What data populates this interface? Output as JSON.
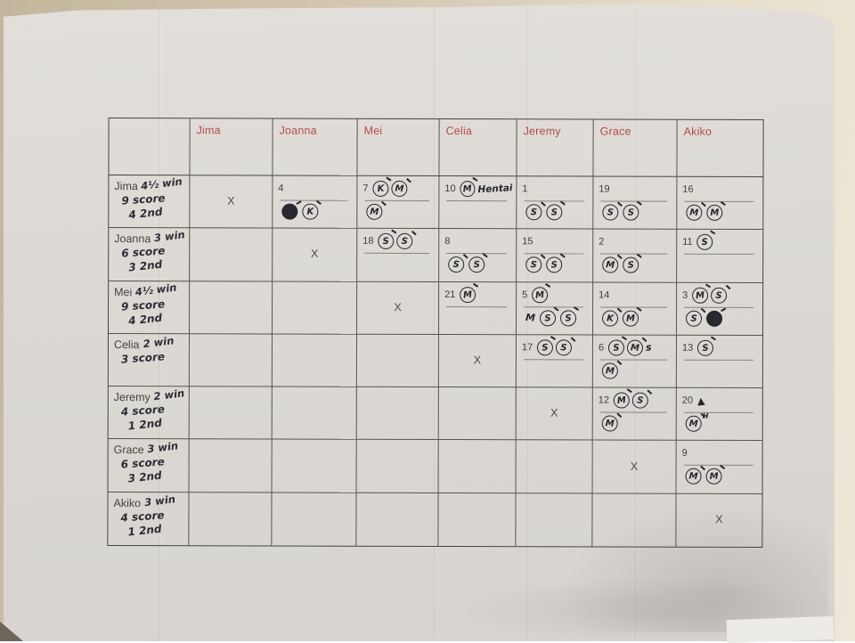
{
  "photo": {
    "background_color": "#d2c6ae",
    "paper_color": "#dcd9d4",
    "ink_color": "#2d2c33",
    "header_color": "#b5494a",
    "grid_color": "#57544c"
  },
  "table": {
    "x_mark": "X",
    "headers": [
      "",
      "Jima",
      "Joanna",
      "Mei",
      "Celia",
      "Jeremy",
      "Grace",
      "Akiko"
    ],
    "rows": [
      {
        "name": "Jima",
        "stats": [
          "4½ win",
          "9 score",
          "4 2nd"
        ],
        "cells": [
          {
            "x": true
          },
          {
            "num": "4",
            "below": [
              "#",
              "K"
            ]
          },
          {
            "num": "7",
            "on": [
              "K",
              "M"
            ],
            "below": [
              "M"
            ]
          },
          {
            "num": "10",
            "on": [
              "M"
            ],
            "note": "Hentai"
          },
          {
            "num": "1",
            "below": [
              "S",
              "S"
            ]
          },
          {
            "num": "19",
            "below": [
              "S",
              "S"
            ]
          },
          {
            "num": "16",
            "below": [
              "M",
              "M"
            ]
          }
        ]
      },
      {
        "name": "Joanna",
        "stats": [
          "3 win",
          "6 score",
          "3 2nd"
        ],
        "cells": [
          null,
          {
            "x": true
          },
          {
            "num": "18",
            "on": [
              "S",
              "S"
            ]
          },
          {
            "num": "8",
            "below": [
              "S",
              "S"
            ]
          },
          {
            "num": "15",
            "below": [
              "S",
              "S"
            ]
          },
          {
            "num": "2",
            "below": [
              "M",
              "S"
            ]
          },
          {
            "num": "11",
            "on": [
              "S"
            ]
          }
        ]
      },
      {
        "name": "Mei",
        "stats": [
          "4½ win",
          "9 score",
          "4 2nd"
        ],
        "cells": [
          null,
          null,
          {
            "x": true
          },
          {
            "num": "21",
            "on": [
              "M"
            ]
          },
          {
            "num": "5",
            "on": [
              "M"
            ],
            "below": [
              "!M",
              "S",
              "S"
            ]
          },
          {
            "num": "14",
            "below": [
              "K",
              "M"
            ]
          },
          {
            "num": "3",
            "on": [
              "M",
              "S"
            ],
            "below": [
              "S",
              "#"
            ]
          }
        ]
      },
      {
        "name": "Celia",
        "stats": [
          "2 win",
          "3 score"
        ],
        "cells": [
          null,
          null,
          null,
          {
            "x": true
          },
          {
            "num": "17",
            "on": [
              "S",
              "S"
            ]
          },
          {
            "num": "6",
            "on": [
              "S",
              "M",
              "!s"
            ],
            "below": [
              "M"
            ]
          },
          {
            "num": "13",
            "on": [
              "S"
            ]
          }
        ]
      },
      {
        "name": "Jeremy",
        "stats": [
          "2 win",
          "4 score",
          "1 2nd"
        ],
        "cells": [
          null,
          null,
          null,
          null,
          {
            "x": true
          },
          {
            "num": "12",
            "on": [
              "M",
              "S"
            ],
            "below": [
              "M"
            ]
          },
          {
            "num": "20",
            "on": [
              "!▲"
            ],
            "below": [
              "M^H"
            ]
          }
        ]
      },
      {
        "name": "Grace",
        "stats": [
          "3 win",
          "6 score",
          "3 2nd"
        ],
        "cells": [
          null,
          null,
          null,
          null,
          null,
          {
            "x": true
          },
          {
            "num": "9",
            "below": [
              "M",
              "M"
            ]
          }
        ]
      },
      {
        "name": "Akiko",
        "stats": [
          "3 win",
          "4 score",
          "1 2nd"
        ],
        "cells": [
          null,
          null,
          null,
          null,
          null,
          null,
          {
            "x": true
          }
        ]
      }
    ]
  }
}
